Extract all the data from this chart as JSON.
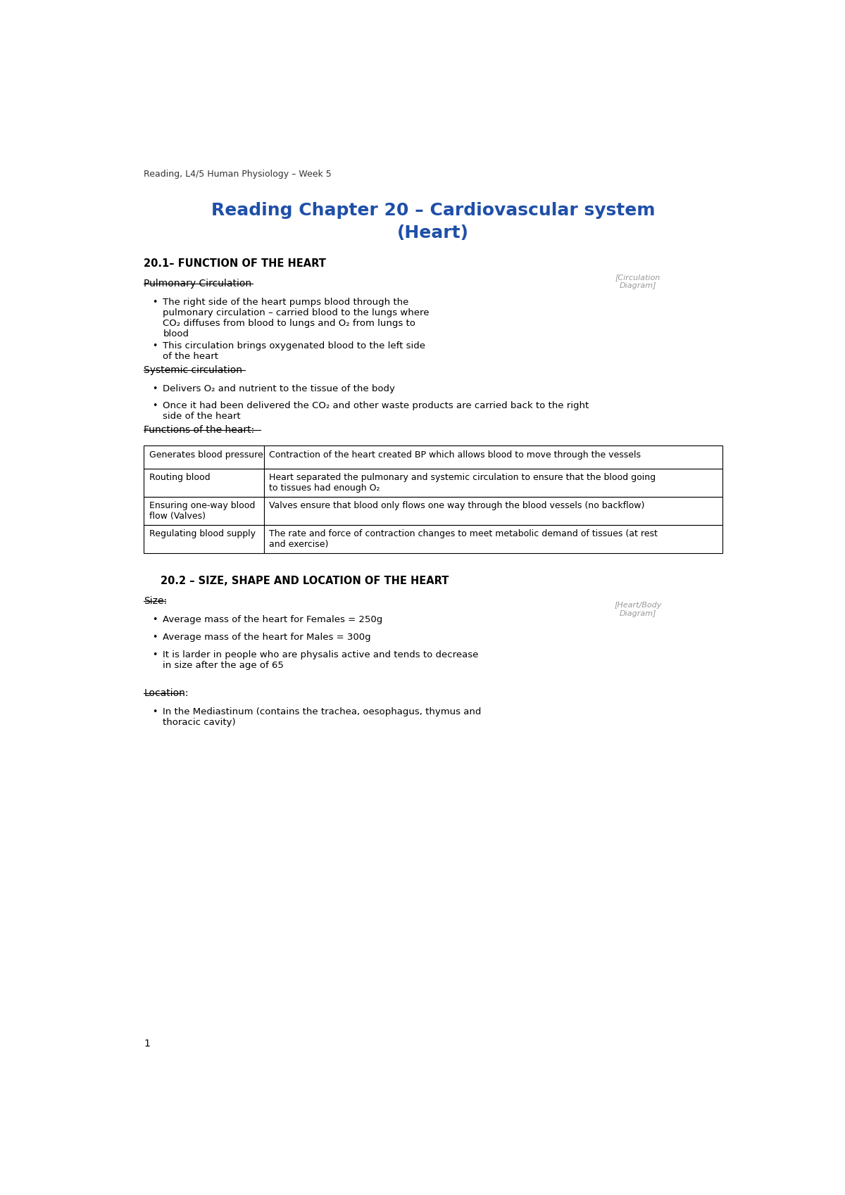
{
  "header": "Reading, L4/5 Human Physiology – Week 5",
  "title_line1": "Reading Chapter 20 – Cardiovascular system",
  "title_line2": "(Heart)",
  "section1_heading": "20.1– FUNCTION OF THE HEART",
  "pulmonary_heading": "Pulmonary Circulation",
  "systemic_heading": "Systemic circulation",
  "functions_heading": "Functions of the heart:",
  "table_rows": [
    [
      "Generates blood pressure",
      "Contraction of the heart created BP which allows blood to move through the vessels"
    ],
    [
      "Routing blood",
      "Heart separated the pulmonary and systemic circulation to ensure that the blood going\nto tissues had enough O₂"
    ],
    [
      "Ensuring one-way blood\nflow (Valves)",
      "Valves ensure that blood only flows one way through the blood vessels (no backflow)"
    ],
    [
      "Regulating blood supply",
      "The rate and force of contraction changes to meet metabolic demand of tissues (at rest\nand exercise)"
    ]
  ],
  "section2_heading": "20.2 – SIZE, SHAPE AND LOCATION OF THE HEART",
  "size_heading": "Size:",
  "size_bullets": [
    "Average mass of the heart for Females = 250g",
    "Average mass of the heart for Males = 300g",
    "It is larder in people who are physalis active and tends to decrease\nin size after the age of 65"
  ],
  "location_heading": "Location:",
  "location_bullets": [
    "In the Mediastinum (contains the trachea, oesophagus, thymus and\nthoracic cavity)"
  ],
  "page_number": "1",
  "title_color": "#1f4fa8",
  "heading_color": "#000000",
  "text_color": "#000000",
  "background_color": "#ffffff"
}
